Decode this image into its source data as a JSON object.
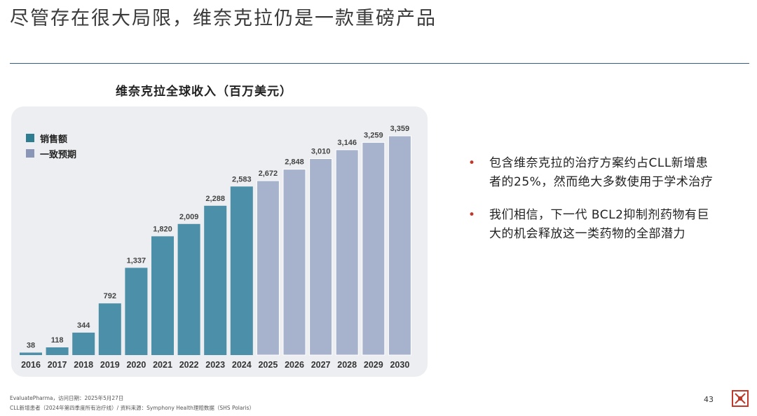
{
  "slide": {
    "title": "尽管存在很大局限，维奈克拉仍是一款重磅产品",
    "page_number": "43"
  },
  "legend": {
    "sales": "销售额",
    "consensus": "一致预期"
  },
  "colors": {
    "actual": "#4b8fa8",
    "forecast": "#a7b3cc",
    "rule": "#2e5f8a",
    "bullet": "#c0392b"
  },
  "chart_data": {
    "type": "bar",
    "title": "维奈克拉全球收入（百万美元）",
    "categories": [
      "2016",
      "2017",
      "2018",
      "2019",
      "2020",
      "2021",
      "2022",
      "2023",
      "2024",
      "2025",
      "2026",
      "2027",
      "2028",
      "2029",
      "2030"
    ],
    "values": [
      38,
      118,
      344,
      792,
      1337,
      1820,
      2009,
      2288,
      2583,
      2672,
      2848,
      3010,
      3146,
      3259,
      3359
    ],
    "labels": [
      "38",
      "118",
      "344",
      "792",
      "1,337",
      "1,820",
      "2,009",
      "2,288",
      "2,583",
      "2,672",
      "2,848",
      "3,010",
      "3,146",
      "3,259",
      "3,359"
    ],
    "series_kind": [
      "sales",
      "sales",
      "sales",
      "sales",
      "sales",
      "sales",
      "sales",
      "sales",
      "sales",
      "consensus",
      "consensus",
      "consensus",
      "consensus",
      "consensus",
      "consensus"
    ],
    "ylim": [
      0,
      3359
    ],
    "legend_position": "top-left",
    "grid": false
  },
  "bullets": [
    "包含维奈克拉的治疗方案约占CLL新增患者的25%，然而绝大多数使用于学术治疗",
    "我们相信，下一代 BCL2抑制剂药物有巨大的机会释放这一类药物的全部潜力"
  ],
  "footnotes": [
    "EvaluatePharma，访问日期：2025年5月27日",
    "CLL新增患者（2024年第四季度所有治疗线）/ 资料来源：Symphony Health理赔数据（SHS Polaris）"
  ]
}
